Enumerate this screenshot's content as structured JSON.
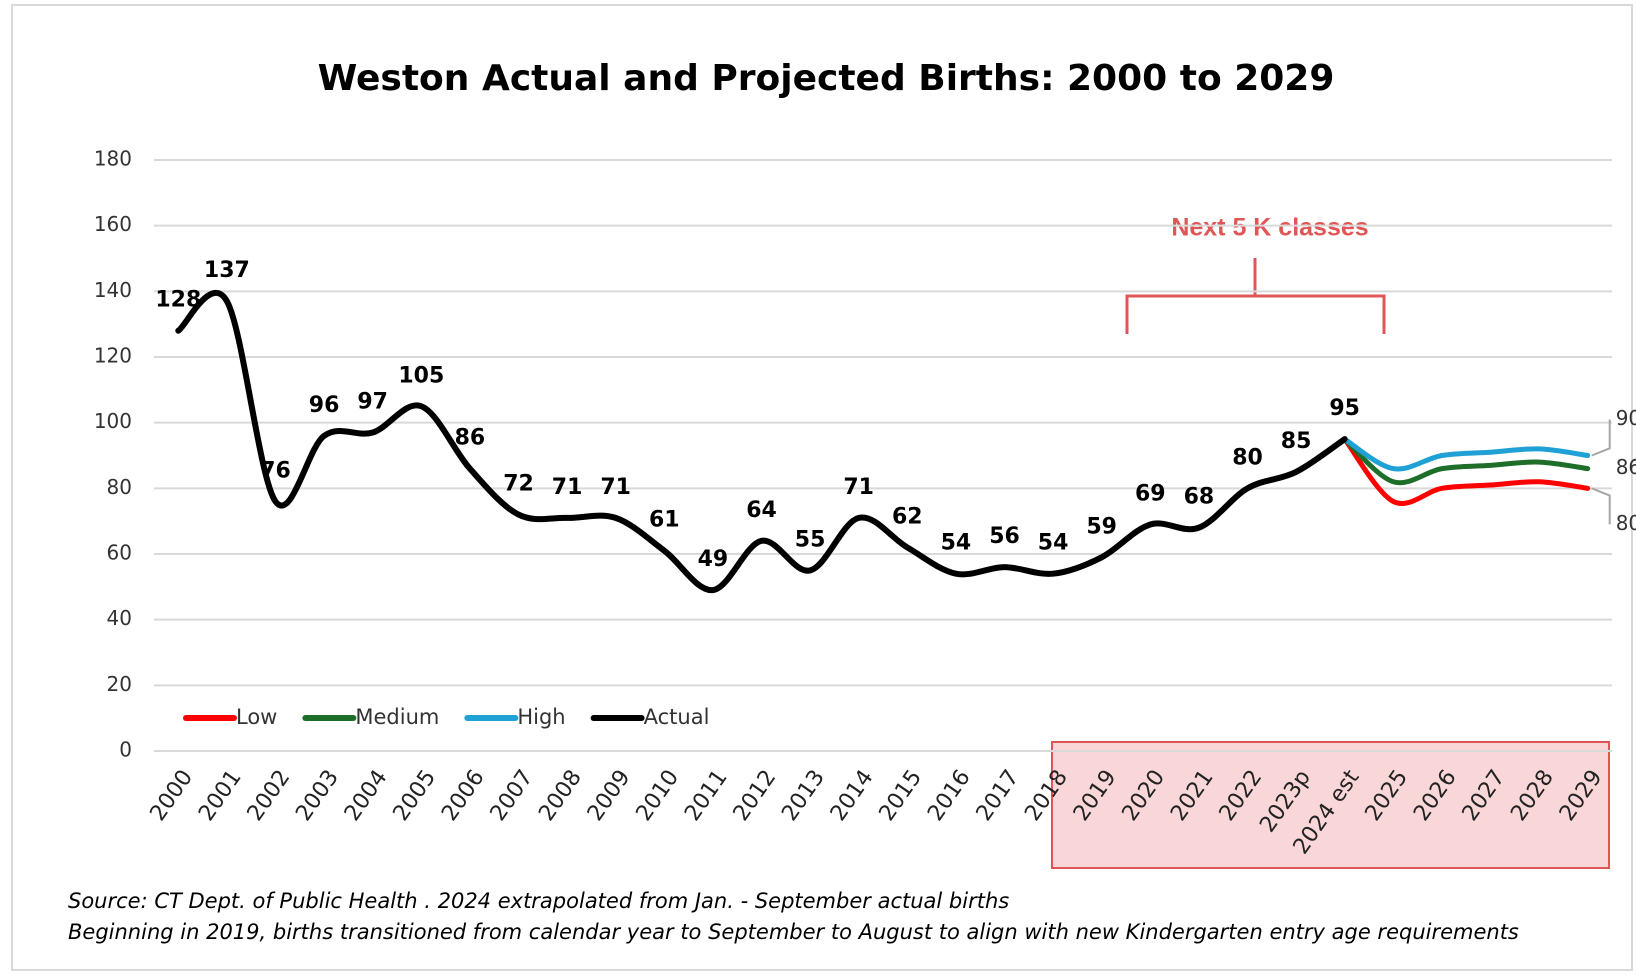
{
  "chart_data": {
    "type": "line",
    "title": "Weston Actual and Projected Births: 2000 to 2029",
    "categories": [
      "2000",
      "2001",
      "2002",
      "2003",
      "2004",
      "2005",
      "2006",
      "2007",
      "2008",
      "2009",
      "2010",
      "2011",
      "2012",
      "2013",
      "2014",
      "2015",
      "2016",
      "2017",
      "2018",
      "2019",
      "2020",
      "2021",
      "2022",
      "2023p",
      "2024 est",
      "2025",
      "2026",
      "2027",
      "2028",
      "2029"
    ],
    "series": [
      {
        "name": "Low",
        "color": "#ff0000",
        "end_label": true,
        "values": [
          null,
          null,
          null,
          null,
          null,
          null,
          null,
          null,
          null,
          null,
          null,
          null,
          null,
          null,
          null,
          null,
          null,
          null,
          null,
          null,
          null,
          null,
          null,
          null,
          95,
          76,
          80,
          81,
          82,
          80
        ]
      },
      {
        "name": "Medium",
        "color": "#1e6e2a",
        "end_label": true,
        "values": [
          null,
          null,
          null,
          null,
          null,
          null,
          null,
          null,
          null,
          null,
          null,
          null,
          null,
          null,
          null,
          null,
          null,
          null,
          null,
          null,
          null,
          null,
          null,
          null,
          95,
          82,
          86,
          87,
          88,
          86
        ]
      },
      {
        "name": "High",
        "color": "#1fa1d6",
        "end_label": true,
        "values": [
          null,
          null,
          null,
          null,
          null,
          null,
          null,
          null,
          null,
          null,
          null,
          null,
          null,
          null,
          null,
          null,
          null,
          null,
          null,
          null,
          null,
          null,
          null,
          null,
          95,
          86,
          90,
          91,
          92,
          90
        ]
      },
      {
        "name": "Actual",
        "color": "#000000",
        "data_labels": true,
        "values": [
          128,
          137,
          76,
          96,
          97,
          105,
          86,
          72,
          71,
          71,
          61,
          49,
          64,
          55,
          71,
          62,
          54,
          56,
          54,
          59,
          69,
          68,
          80,
          85,
          95,
          null,
          null,
          null,
          null,
          null
        ]
      }
    ],
    "ylim": [
      0,
      180
    ],
    "yticks": [
      0,
      20,
      40,
      60,
      80,
      100,
      120,
      140,
      160,
      180
    ],
    "grid": true,
    "legend": "lower left",
    "annotations": [
      "Next 5 K classes"
    ],
    "notes": [
      "Source: CT Dept. of Public Health . 2024 extrapolated from Jan. - September actual births",
      "Beginning in 2019, births transitioned from calendar year to September to August to align with new Kindergarten entry age requirements"
    ]
  }
}
